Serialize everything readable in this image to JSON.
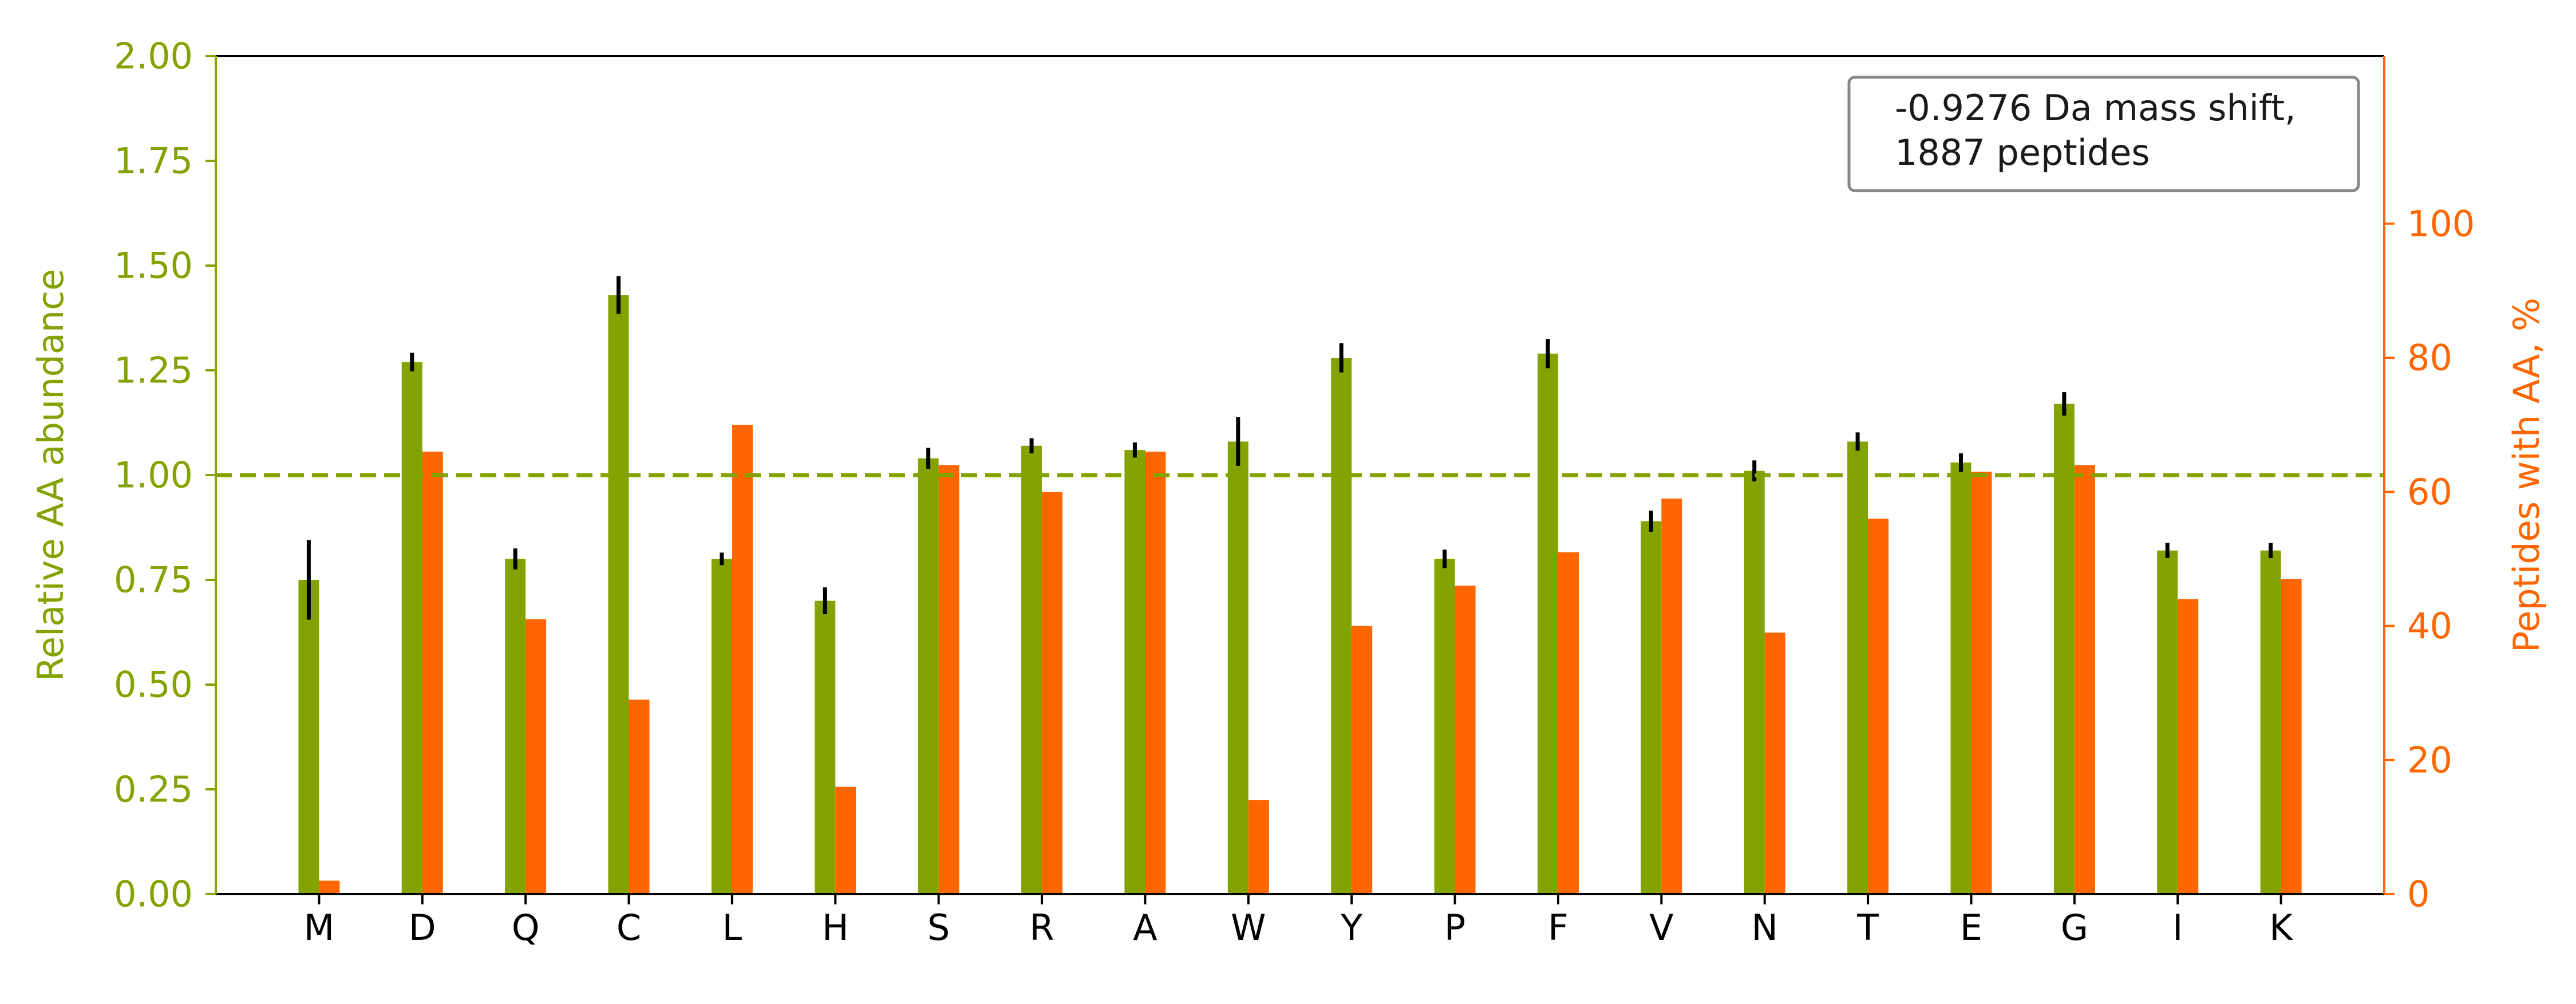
{
  "chart_data": {
    "type": "bar",
    "title": "",
    "xlabel": "",
    "categories": [
      "M",
      "D",
      "Q",
      "C",
      "L",
      "H",
      "S",
      "R",
      "A",
      "W",
      "Y",
      "P",
      "F",
      "V",
      "N",
      "T",
      "E",
      "G",
      "I",
      "K"
    ],
    "left_axis": {
      "label": "Relative AA abundance",
      "ylim": [
        0,
        2.0
      ],
      "ticks": [
        "0.00",
        "0.25",
        "0.50",
        "0.75",
        "1.00",
        "1.25",
        "1.50",
        "1.75",
        "2.00"
      ],
      "color": "#83a300"
    },
    "right_axis": {
      "label": "Peptides with AA, %",
      "ylim": [
        0,
        125
      ],
      "ticks": [
        "0",
        "20",
        "40",
        "60",
        "80",
        "100"
      ],
      "color": "#ff6600"
    },
    "series": [
      {
        "name": "",
        "axis": "left",
        "color": "#83a300",
        "values": [
          0.75,
          1.27,
          0.8,
          1.43,
          0.8,
          0.7,
          1.04,
          1.07,
          1.06,
          1.08,
          1.28,
          0.8,
          1.29,
          0.89,
          1.01,
          1.08,
          1.03,
          1.17,
          0.82,
          0.82
        ],
        "errors": [
          0.095,
          0.022,
          0.025,
          0.045,
          0.015,
          0.032,
          0.025,
          0.018,
          0.018,
          0.058,
          0.035,
          0.022,
          0.035,
          0.025,
          0.025,
          0.022,
          0.022,
          0.028,
          0.018,
          0.018
        ]
      },
      {
        "name": "",
        "axis": "right",
        "color": "#ff6600",
        "values": [
          2,
          66,
          41,
          29,
          70,
          16,
          64,
          60,
          66,
          14,
          40,
          46,
          51,
          59,
          39,
          56,
          63,
          64,
          44,
          47
        ]
      }
    ],
    "reference_line": {
      "value": 1.0,
      "axis": "left",
      "style": "dashed",
      "color": "#83a300"
    },
    "legend": {
      "lines": [
        "-0.9276 Da mass shift,",
        "1887 peptides"
      ],
      "placement": "top-right"
    },
    "grid": false
  }
}
